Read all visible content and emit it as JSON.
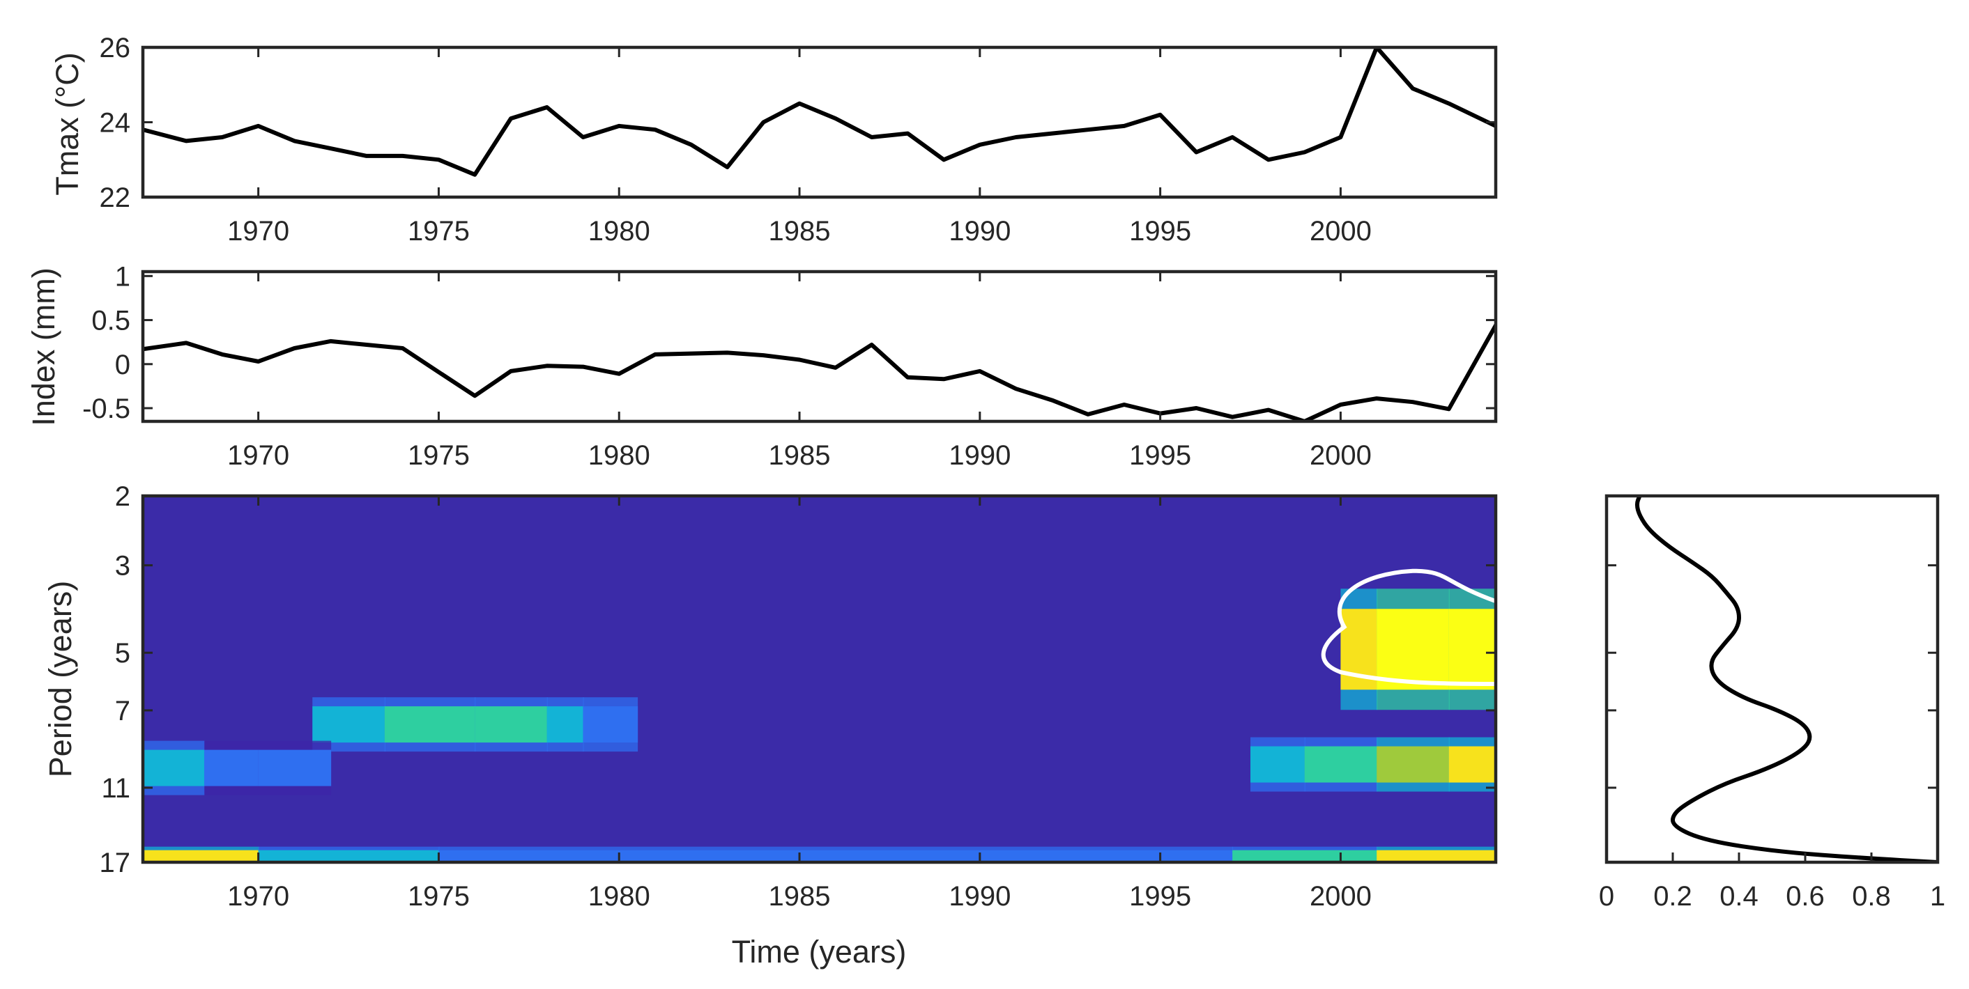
{
  "chart_data": [
    {
      "type": "line",
      "ylabel": "Tmax (°C)",
      "xlim": [
        1966.8,
        2004.3
      ],
      "ylim": [
        22,
        26
      ],
      "xticks": [
        1970,
        1975,
        1980,
        1985,
        1990,
        1995,
        2000
      ],
      "yticks": [
        22,
        24,
        26
      ],
      "x": [
        1966.8,
        1968,
        1969,
        1970,
        1971,
        1972,
        1973,
        1974,
        1975,
        1976,
        1977,
        1978,
        1979,
        1980,
        1981,
        1982,
        1983,
        1984,
        1985,
        1986,
        1987,
        1988,
        1989,
        1990,
        1991,
        1992,
        1993,
        1994,
        1995,
        1996,
        1997,
        1998,
        1999,
        2000,
        2001,
        2002,
        2003,
        2004.3
      ],
      "y": [
        23.8,
        23.5,
        23.6,
        23.9,
        23.5,
        23.3,
        23.1,
        23.1,
        23.0,
        22.6,
        24.1,
        24.4,
        23.6,
        23.9,
        23.8,
        23.4,
        22.8,
        24.0,
        24.5,
        24.1,
        23.6,
        23.7,
        23.0,
        23.4,
        23.6,
        23.7,
        23.8,
        23.9,
        24.2,
        23.2,
        23.6,
        23.0,
        23.2,
        23.6,
        26.0,
        24.9,
        24.5,
        23.9
      ]
    },
    {
      "type": "line",
      "ylabel": "Index (mm)",
      "xlim": [
        1966.8,
        2004.3
      ],
      "ylim": [
        -0.65,
        1.05
      ],
      "xticks": [
        1970,
        1975,
        1980,
        1985,
        1990,
        1995,
        2000
      ],
      "yticks": [
        -0.5,
        0,
        0.5,
        1
      ],
      "yticklabels": [
        "-0.5",
        "0",
        "0.5",
        "1"
      ],
      "x": [
        1966.8,
        1968,
        1969,
        1970,
        1971,
        1972,
        1973,
        1974,
        1975,
        1976,
        1977,
        1978,
        1979,
        1980,
        1981,
        1982,
        1983,
        1984,
        1985,
        1986,
        1987,
        1988,
        1989,
        1990,
        1991,
        1992,
        1993,
        1994,
        1995,
        1996,
        1997,
        1998,
        1999,
        2000,
        2001,
        2002,
        2003,
        2004.3
      ],
      "y": [
        0.17,
        0.24,
        0.11,
        0.03,
        0.18,
        0.26,
        0.22,
        0.18,
        -0.09,
        -0.36,
        -0.08,
        -0.02,
        -0.03,
        -0.11,
        0.11,
        0.12,
        0.13,
        0.1,
        0.05,
        -0.04,
        0.22,
        -0.15,
        -0.17,
        -0.08,
        -0.28,
        -0.41,
        -0.57,
        -0.46,
        -0.56,
        -0.5,
        -0.6,
        -0.52,
        -0.65,
        -0.46,
        -0.39,
        -0.43,
        -0.51,
        0.44
      ]
    },
    {
      "type": "heatmap",
      "xlabel": "Time (years)",
      "ylabel": "Period (years)",
      "scale": "log2",
      "xlim": [
        1966.8,
        2004.3
      ],
      "ylim": [
        2,
        17
      ],
      "xticks": [
        1970,
        1975,
        1980,
        1985,
        1990,
        1995,
        2000
      ],
      "yticks": [
        2,
        3,
        5,
        7,
        11,
        17
      ],
      "background_color": "#3b2ba8",
      "colormap": [
        "#3e26a8",
        "#2f6ff0",
        "#13b3d6",
        "#2ecfa0",
        "#9fca3c",
        "#f7e21c",
        "#fbff14"
      ],
      "regions": [
        {
          "t": [
            1971.5,
            1973.5,
            1976,
            1978,
            1979,
            1980.5
          ],
          "period": 7.6,
          "power": [
            0.15,
            0.4,
            0.6,
            0.45,
            0.3,
            0.15
          ]
        },
        {
          "t": [
            1966.8,
            1968.5,
            1970,
            1972
          ],
          "period": 9.8,
          "power": [
            0.3,
            0.2,
            0.15,
            0.1
          ]
        },
        {
          "t": [
            1997.5,
            1999,
            2001,
            2003,
            2004.3
          ],
          "period": 9.6,
          "power": [
            0.15,
            0.35,
            0.6,
            0.75,
            0.9
          ]
        },
        {
          "t": [
            2000,
            2001,
            2003,
            2004.3
          ],
          "period": 4.9,
          "power": [
            0.6,
            1.0,
            1.0,
            1.0
          ]
        },
        {
          "t": [
            1966.8,
            1970,
            1975,
            1997,
            2001,
            2004.3
          ],
          "period": 16.5,
          "power": [
            0.9,
            0.6,
            0.2,
            0.2,
            0.7,
            1.0
          ]
        }
      ],
      "significance_contour": {
        "color": "#ffffff",
        "t_range": [
          1999.4,
          2004.3
        ],
        "period_range": [
          3.1,
          6.0
        ]
      }
    },
    {
      "type": "line",
      "orientation": "vertical",
      "xlim": [
        0,
        1
      ],
      "ylim": [
        2,
        17
      ],
      "xticks": [
        0,
        0.2,
        0.4,
        0.6,
        0.8,
        1
      ],
      "xticklabels": [
        "0",
        "0.2",
        "0.4",
        "0.6",
        "0.8",
        "1"
      ],
      "power": [
        0.1,
        0.09,
        0.1,
        0.13,
        0.19,
        0.26,
        0.32,
        0.36,
        0.4,
        0.4,
        0.35,
        0.31,
        0.33,
        0.41,
        0.52,
        0.6,
        0.62,
        0.58,
        0.48,
        0.36,
        0.26,
        0.2,
        0.2,
        0.3,
        0.52,
        0.78,
        1.0
      ],
      "period": [
        2.0,
        2.1,
        2.25,
        2.45,
        2.7,
        2.95,
        3.2,
        3.5,
        3.85,
        4.3,
        4.8,
        5.3,
        5.9,
        6.5,
        7.0,
        7.6,
        8.3,
        9.0,
        9.9,
        10.7,
        11.8,
        12.8,
        13.8,
        15.0,
        16.0,
        16.6,
        17.0
      ]
    }
  ]
}
